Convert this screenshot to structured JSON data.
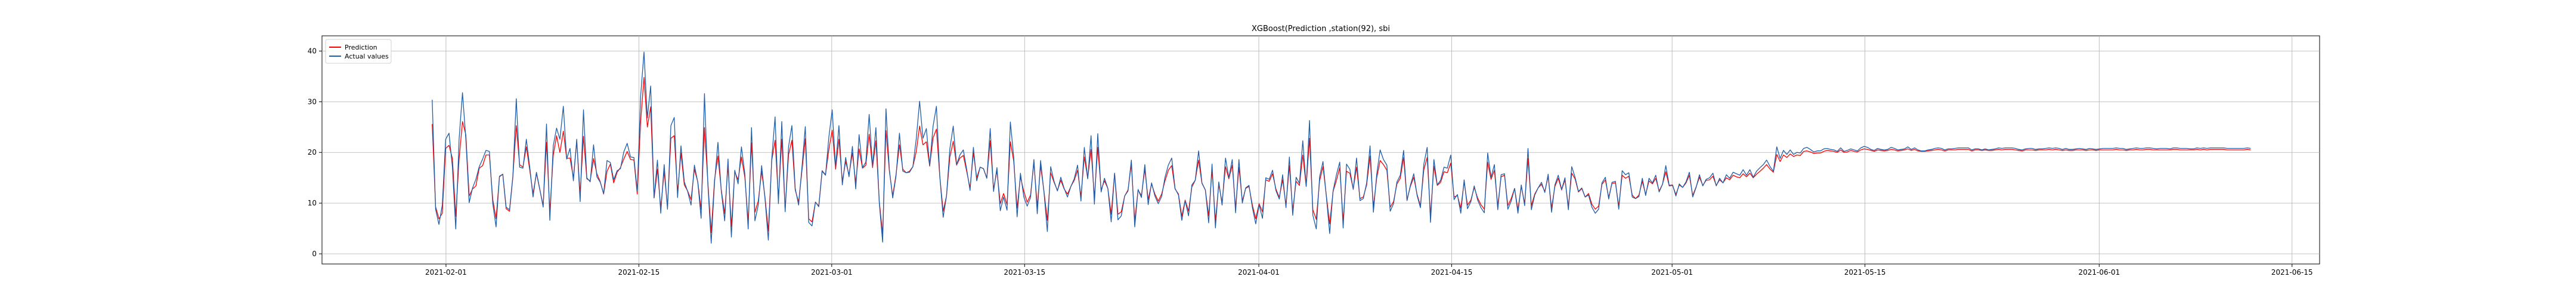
{
  "chart_data": {
    "type": "line",
    "title": "XGBoost(Prediction ,station(92), sbi",
    "xlabel": "",
    "ylabel": "",
    "xlim": [
      "2021-01-23",
      "2021-06-17"
    ],
    "ylim": [
      -2,
      43
    ],
    "x_ticks": [
      "2021-02-01",
      "2021-02-15",
      "2021-03-01",
      "2021-03-15",
      "2021-04-01",
      "2021-04-15",
      "2021-05-01",
      "2021-05-15",
      "2021-06-01",
      "2021-06-15"
    ],
    "y_ticks": [
      0,
      10,
      20,
      30,
      40
    ],
    "grid": true,
    "legend": "top-left",
    "x_start": "2021-01-31",
    "x_end": "2021-06-12",
    "series": [
      {
        "name": "Prediction",
        "color": "#ff0000",
        "values": [
          25.6,
          9.3,
          6.9,
          8.0,
          20.8,
          21.4,
          18.8,
          7.4,
          18.7,
          26.1,
          23.5,
          11.4,
          12.8,
          13.4,
          16.9,
          17.4,
          19.5,
          19.5,
          10.8,
          6.9,
          15.2,
          15.7,
          8.9,
          8.4,
          15.2,
          25.3,
          17.6,
          17.1,
          21.1,
          16.6,
          11.8,
          15.9,
          12.7,
          9.5,
          22.0,
          8.3,
          19.4,
          23.3,
          20.0,
          24.2,
          18.8,
          18.9,
          15.0,
          22.2,
          11.8,
          23.2,
          14.8,
          14.4,
          18.8,
          15.8,
          14.2,
          11.8,
          16.3,
          17.7,
          14.0,
          16.1,
          17.0,
          18.7,
          20.2,
          18.6,
          18.5,
          11.8,
          26.0,
          34.8,
          25.0,
          29.0,
          11.0,
          16.7,
          9.0,
          16.3,
          9.2,
          22.8,
          23.3,
          12.1,
          19.9,
          13.6,
          12.4,
          10.7,
          16.7,
          14.2,
          8.7,
          24.9,
          14.1,
          4.2,
          14.6,
          19.3,
          12.6,
          7.9,
          17.5,
          5.4,
          16.2,
          14.6,
          19.1,
          15.1,
          6.3,
          21.9,
          8.2,
          10.4,
          16.3,
          11.2,
          4.5,
          18.4,
          22.4,
          10.9,
          22.6,
          8.7,
          19.5,
          22.4,
          12.6,
          10.2,
          16.4,
          22.7,
          6.9,
          6.3,
          10.2,
          9.4,
          16.4,
          15.6,
          20.6,
          24.4,
          16.7,
          22.6,
          14.3,
          18.2,
          15.6,
          19.9,
          14.0,
          20.7,
          16.9,
          17.5,
          23.6,
          17.0,
          22.3,
          10.3,
          3.9,
          24.3,
          16.3,
          11.4,
          15.7,
          21.5,
          16.7,
          16.0,
          16.3,
          17.2,
          20.2,
          25.2,
          21.5,
          22.1,
          17.3,
          22.9,
          24.6,
          15.3,
          8.4,
          11.4,
          19.1,
          22.2,
          17.5,
          18.9,
          19.4,
          16.3,
          13.0,
          19.9,
          15.0,
          17.1,
          16.8,
          14.9,
          22.3,
          12.7,
          16.4,
          9.9,
          11.9,
          9.7,
          22.1,
          18.3,
          9.0,
          15.2,
          12.3,
          10.2,
          11.6,
          18.0,
          9.3,
          17.4,
          12.3,
          6.6,
          16.0,
          14.1,
          12.5,
          14.5,
          12.8,
          11.8,
          13.3,
          14.5,
          16.5,
          11.3,
          19.1,
          14.9,
          20.6,
          11.1,
          21.0,
          12.6,
          14.4,
          12.9,
          7.8,
          15.9,
          7.8,
          8.3,
          11.4,
          12.6,
          17.7,
          6.5,
          12.6,
          11.5,
          16.7,
          10.7,
          13.8,
          11.8,
          10.4,
          11.8,
          14.4,
          16.5,
          17.4,
          12.8,
          11.8,
          7.4,
          10.6,
          8.4,
          13.2,
          14.5,
          18.5,
          13.9,
          12.6,
          7.5,
          16.5,
          6.5,
          13.7,
          10.1,
          17.2,
          14.8,
          17.5,
          9.0,
          17.1,
          10.4,
          12.9,
          13.3,
          9.6,
          6.9,
          9.9,
          8.3,
          14.6,
          14.3,
          15.8,
          12.8,
          11.1,
          14.6,
          9.6,
          17.4,
          8.5,
          14.3,
          13.5,
          19.5,
          13.3,
          22.8,
          8.7,
          6.8,
          14.4,
          17.2,
          11.5,
          5.9,
          12.3,
          14.5,
          17.0,
          6.4,
          16.3,
          15.9,
          12.8,
          17.1,
          10.9,
          11.2,
          13.6,
          19.3,
          9.3,
          15.0,
          18.4,
          17.6,
          16.5,
          9.2,
          10.3,
          13.8,
          14.9,
          19.0,
          10.6,
          13.3,
          15.1,
          11.7,
          9.5,
          16.6,
          19.0,
          7.6,
          17.3,
          13.5,
          14.1,
          16.2,
          16.0,
          17.9,
          11.2,
          11.5,
          9.0,
          14.2,
          9.6,
          10.6,
          13.1,
          11.0,
          9.7,
          8.8,
          18.1,
          14.7,
          16.5,
          9.4,
          15.2,
          15.5,
          9.5,
          10.9,
          12.9,
          8.7,
          13.3,
          9.9,
          18.8,
          9.5,
          11.8,
          13.0,
          13.7,
          12.3,
          15.3,
          9.0,
          13.3,
          14.9,
          12.6,
          14.6,
          9.3,
          15.9,
          14.8,
          12.2,
          12.9,
          11.2,
          11.9,
          9.8,
          8.8,
          9.4,
          13.7,
          14.6,
          11.1,
          13.9,
          14.0,
          9.4,
          15.5,
          14.9,
          15.3,
          11.6,
          10.9,
          11.6,
          14.3,
          11.7,
          14.4,
          13.8,
          14.9,
          12.4,
          13.7,
          16.2,
          13.4,
          13.5,
          11.7,
          13.6,
          13.1,
          14.0,
          15.5,
          11.5,
          13.2,
          15.1,
          13.5,
          14.5,
          14.6,
          15.3,
          13.5,
          14.6,
          14.0,
          15.0,
          14.6,
          15.5,
          15.2,
          15.0,
          15.8,
          15.2,
          15.9,
          15.0,
          15.7,
          16.3,
          16.9,
          17.6,
          16.7,
          16.1,
          19.6,
          18.2,
          19.5,
          19.0,
          19.7,
          19.2,
          19.5,
          19.4,
          20.2,
          20.3,
          20.1,
          19.8,
          19.9,
          19.9,
          20.2,
          20.4,
          20.3,
          20.2,
          20.0,
          20.5,
          20.0,
          20.1,
          20.4,
          20.2,
          20.1,
          20.5,
          20.7,
          20.6,
          20.4,
          20.2,
          20.5,
          20.4,
          20.3,
          20.4,
          20.6,
          20.5,
          20.3,
          20.4,
          20.5,
          20.7,
          20.4,
          20.6,
          20.3,
          20.2,
          20.2,
          20.3,
          20.4,
          20.5,
          20.6,
          20.5,
          20.3,
          20.5,
          20.5,
          20.5,
          20.6,
          20.6,
          20.6,
          20.6,
          20.3,
          20.5,
          20.5,
          20.4,
          20.5,
          20.4,
          20.4,
          20.5,
          20.6,
          20.5,
          20.6,
          20.6,
          20.6,
          20.5,
          20.4,
          20.3,
          20.5,
          20.5,
          20.5,
          20.4,
          20.5,
          20.5,
          20.5,
          20.6,
          20.5,
          20.6,
          20.5,
          20.4,
          20.5,
          20.4,
          20.4,
          20.5,
          20.5,
          20.5,
          20.4,
          20.5,
          20.5,
          20.4,
          20.5,
          20.5,
          20.5,
          20.5,
          20.5,
          20.6,
          20.5,
          20.5,
          20.4,
          20.5,
          20.5,
          20.6,
          20.5,
          20.5,
          20.6,
          20.6,
          20.5,
          20.5,
          20.5,
          20.5,
          20.5,
          20.5,
          20.6,
          20.6,
          20.5,
          20.5,
          20.5,
          20.5,
          20.5,
          20.6,
          20.5,
          20.6,
          20.5,
          20.6,
          20.6,
          20.6,
          20.6,
          20.6,
          20.5,
          20.5,
          20.5,
          20.5,
          20.5,
          20.5,
          20.6,
          20.5
        ]
      },
      {
        "name": "Actual values",
        "color": "#1f5ea8",
        "values": [
          30.4,
          8.8,
          5.8,
          9.6,
          22.6,
          23.8,
          17.1,
          4.9,
          22.6,
          31.8,
          22.7,
          10.1,
          13.0,
          14.7,
          17.2,
          18.7,
          20.4,
          20.2,
          10.0,
          5.3,
          15.3,
          15.7,
          9.2,
          8.7,
          15.3,
          30.6,
          17.1,
          16.9,
          22.6,
          17.2,
          11.2,
          16.1,
          12.8,
          9.2,
          25.6,
          6.6,
          21.3,
          24.8,
          22.6,
          29.1,
          18.7,
          20.8,
          14.4,
          22.6,
          10.3,
          28.4,
          15.0,
          14.2,
          21.5,
          15.2,
          14.1,
          11.9,
          18.4,
          18.0,
          14.6,
          16.4,
          16.8,
          20.1,
          21.8,
          19.1,
          19.0,
          12.4,
          31.0,
          39.8,
          26.8,
          33.1,
          11.1,
          18.5,
          8.0,
          17.6,
          8.8,
          25.3,
          26.9,
          11.1,
          21.3,
          14.2,
          12.3,
          9.6,
          17.5,
          14.1,
          7.0,
          31.6,
          13.7,
          2.1,
          14.1,
          22.0,
          12.4,
          6.5,
          18.7,
          3.3,
          16.5,
          13.8,
          21.1,
          15.8,
          4.9,
          24.9,
          6.5,
          9.6,
          17.4,
          10.9,
          2.7,
          18.7,
          27.0,
          9.9,
          26.1,
          8.3,
          21.1,
          25.3,
          12.9,
          9.6,
          17.1,
          25.1,
          6.2,
          5.5,
          10.2,
          9.3,
          16.3,
          15.5,
          23.0,
          28.4,
          17.2,
          25.3,
          13.6,
          19.0,
          15.2,
          21.2,
          12.8,
          23.5,
          17.0,
          18.1,
          27.5,
          17.3,
          24.9,
          10.0,
          2.3,
          28.6,
          16.6,
          11.0,
          15.4,
          23.8,
          16.3,
          16.0,
          16.1,
          17.2,
          22.7,
          30.1,
          22.8,
          24.7,
          17.4,
          25.2,
          29.1,
          15.4,
          7.2,
          11.4,
          20.7,
          25.2,
          17.6,
          19.5,
          20.5,
          16.7,
          12.5,
          21.0,
          14.4,
          17.1,
          16.8,
          14.9,
          24.7,
          12.3,
          17.0,
          8.5,
          11.2,
          8.6,
          26.0,
          19.1,
          7.3,
          15.9,
          11.2,
          9.4,
          11.1,
          18.6,
          7.9,
          18.4,
          12.1,
          4.4,
          17.2,
          14.3,
          12.4,
          15.1,
          12.9,
          11.2,
          13.3,
          14.8,
          17.5,
          10.4,
          21.0,
          14.8,
          23.3,
          9.8,
          23.7,
          12.2,
          14.9,
          12.9,
          6.3,
          15.9,
          6.7,
          7.5,
          11.4,
          12.4,
          18.5,
          5.3,
          12.7,
          11.1,
          17.6,
          9.7,
          14.0,
          11.4,
          9.9,
          11.3,
          15.1,
          17.5,
          18.9,
          12.9,
          11.6,
          6.6,
          10.5,
          7.5,
          13.6,
          14.5,
          20.3,
          14.0,
          12.6,
          6.1,
          17.7,
          5.1,
          14.2,
          9.6,
          18.9,
          15.0,
          18.6,
          8.1,
          18.6,
          10.0,
          13.0,
          13.5,
          9.1,
          5.9,
          9.7,
          7.0,
          15.0,
          14.7,
          16.5,
          12.5,
          10.8,
          15.6,
          9.1,
          19.1,
          7.6,
          15.1,
          13.9,
          22.3,
          13.3,
          26.3,
          7.6,
          4.9,
          15.2,
          18.2,
          11.3,
          4.0,
          12.4,
          15.6,
          18.1,
          5.1,
          17.7,
          16.7,
          12.7,
          18.9,
          10.5,
          10.9,
          14.0,
          21.3,
          8.2,
          15.7,
          20.5,
          18.6,
          17.5,
          8.4,
          9.9,
          14.2,
          15.5,
          20.4,
          10.5,
          13.5,
          15.8,
          11.5,
          9.1,
          17.7,
          21.0,
          6.2,
          18.6,
          13.6,
          14.5,
          17.1,
          16.9,
          19.5,
          10.7,
          11.7,
          8.0,
          14.6,
          8.9,
          10.3,
          13.4,
          10.6,
          9.1,
          8.1,
          19.9,
          15.1,
          17.6,
          8.7,
          15.6,
          15.8,
          8.8,
          10.4,
          12.9,
          8.0,
          13.6,
          9.5,
          20.8,
          8.7,
          11.6,
          13.0,
          14.1,
          12.1,
          15.7,
          8.2,
          13.6,
          15.5,
          12.7,
          15.0,
          8.7,
          17.2,
          15.1,
          12.3,
          13.0,
          11.2,
          11.6,
          9.2,
          8.0,
          8.8,
          14.0,
          15.1,
          10.8,
          14.1,
          14.3,
          8.8,
          16.4,
          15.6,
          16.0,
          11.2,
          10.9,
          11.3,
          14.9,
          11.5,
          14.9,
          14.0,
          15.5,
          12.2,
          13.7,
          17.4,
          13.5,
          13.6,
          11.4,
          13.8,
          13.1,
          14.2,
          16.1,
          11.2,
          13.1,
          15.6,
          13.4,
          14.7,
          15.0,
          15.9,
          13.4,
          14.9,
          14.0,
          15.6,
          14.9,
          16.1,
          15.8,
          15.5,
          16.6,
          15.5,
          16.6,
          15.1,
          16.3,
          17.0,
          17.6,
          18.5,
          17.2,
          16.3,
          21.1,
          18.8,
          20.4,
          19.6,
          20.5,
          19.6,
          20.0,
          19.9,
          20.8,
          21.0,
          20.6,
          20.1,
          20.3,
          20.3,
          20.7,
          20.8,
          20.6,
          20.5,
          20.2,
          20.9,
          20.2,
          20.4,
          20.7,
          20.5,
          20.3,
          20.9,
          21.2,
          21.0,
          20.6,
          20.4,
          20.8,
          20.6,
          20.5,
          20.6,
          21.0,
          20.8,
          20.5,
          20.6,
          20.7,
          21.1,
          20.6,
          20.9,
          20.5,
          20.3,
          20.3,
          20.5,
          20.6,
          20.8,
          20.9,
          20.8,
          20.5,
          20.7,
          20.7,
          20.8,
          20.9,
          20.9,
          20.9,
          20.9,
          20.5,
          20.7,
          20.7,
          20.5,
          20.7,
          20.5,
          20.6,
          20.7,
          20.9,
          20.8,
          20.9,
          20.9,
          20.9,
          20.8,
          20.6,
          20.5,
          20.7,
          20.8,
          20.8,
          20.6,
          20.7,
          20.7,
          20.8,
          20.9,
          20.8,
          20.9,
          20.8,
          20.6,
          20.8,
          20.6,
          20.6,
          20.7,
          20.8,
          20.7,
          20.6,
          20.8,
          20.7,
          20.6,
          20.7,
          20.8,
          20.8,
          20.8,
          20.8,
          20.9,
          20.8,
          20.8,
          20.6,
          20.7,
          20.8,
          20.9,
          20.8,
          20.8,
          20.9,
          20.9,
          20.8,
          20.7,
          20.8,
          20.8,
          20.8,
          20.7,
          20.9,
          20.9,
          20.8,
          20.8,
          20.8,
          20.7,
          20.7,
          20.9,
          20.8,
          20.9,
          20.8,
          20.9,
          20.9,
          20.9,
          20.9,
          20.9,
          20.8,
          20.8,
          20.8,
          20.8,
          20.8,
          20.8,
          20.9,
          20.8
        ]
      }
    ]
  }
}
